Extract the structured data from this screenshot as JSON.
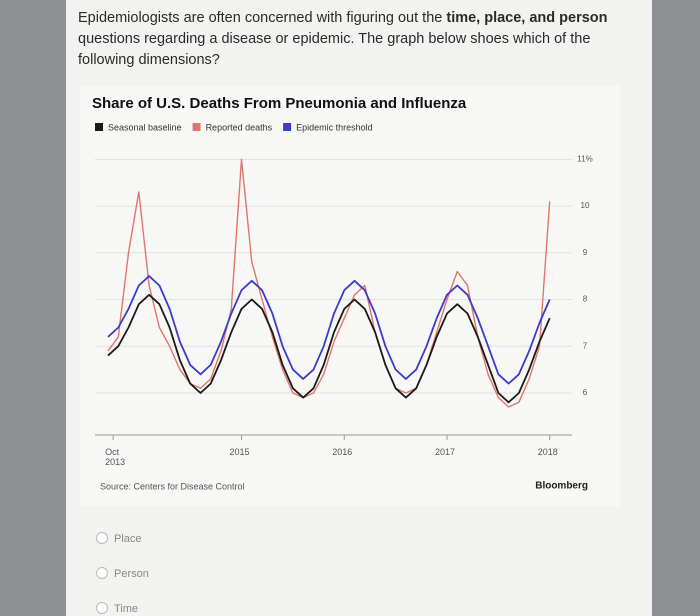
{
  "question": [
    "Epidemiologists are often concerned with figuring out the ",
    "time, place, and person",
    " questions regarding a disease or epidemic. The graph below shoes which of the following dimensions?"
  ],
  "chart_data": {
    "type": "line",
    "title": "Share of U.S. Deaths From Pneumonia and Influenza",
    "x": [
      2013.7,
      2013.8,
      2013.9,
      2014.0,
      2014.1,
      2014.2,
      2014.3,
      2014.4,
      2014.5,
      2014.6,
      2014.7,
      2014.8,
      2014.9,
      2015.0,
      2015.1,
      2015.2,
      2015.3,
      2015.4,
      2015.5,
      2015.6,
      2015.7,
      2015.8,
      2015.9,
      2016.0,
      2016.1,
      2016.2,
      2016.3,
      2016.4,
      2016.5,
      2016.6,
      2016.7,
      2016.8,
      2016.9,
      2017.0,
      2017.1,
      2017.2,
      2017.3,
      2017.4,
      2017.5,
      2017.6,
      2017.7,
      2017.8,
      2017.9,
      2018.0
    ],
    "series": [
      {
        "name": "Seasonal baseline",
        "color": "#1a1a1a",
        "values": [
          6.8,
          7.0,
          7.4,
          7.9,
          8.1,
          7.9,
          7.4,
          6.7,
          6.2,
          6.0,
          6.2,
          6.7,
          7.3,
          7.8,
          8.0,
          7.8,
          7.3,
          6.6,
          6.1,
          5.9,
          6.1,
          6.6,
          7.3,
          7.8,
          8.0,
          7.8,
          7.3,
          6.6,
          6.1,
          5.9,
          6.1,
          6.6,
          7.2,
          7.7,
          7.9,
          7.7,
          7.2,
          6.6,
          6.0,
          5.8,
          6.0,
          6.5,
          7.1,
          7.6
        ]
      },
      {
        "name": "Reported deaths",
        "color": "#e0766b",
        "values": [
          6.9,
          7.2,
          9.0,
          10.3,
          8.3,
          7.4,
          7.0,
          6.5,
          6.2,
          6.1,
          6.3,
          6.9,
          7.8,
          11.0,
          8.8,
          8.0,
          7.2,
          6.5,
          6.0,
          5.9,
          6.0,
          6.4,
          7.1,
          7.6,
          8.1,
          8.3,
          7.3,
          6.6,
          6.1,
          6.0,
          6.1,
          6.6,
          7.3,
          8.0,
          8.6,
          8.3,
          7.2,
          6.4,
          5.9,
          5.7,
          5.8,
          6.3,
          7.0,
          10.1
        ]
      },
      {
        "name": "Epidemic threshold",
        "color": "#3c3cc8",
        "values": [
          7.2,
          7.4,
          7.8,
          8.3,
          8.5,
          8.3,
          7.8,
          7.1,
          6.6,
          6.4,
          6.6,
          7.1,
          7.7,
          8.2,
          8.4,
          8.2,
          7.7,
          7.0,
          6.5,
          6.3,
          6.5,
          7.0,
          7.7,
          8.2,
          8.4,
          8.2,
          7.7,
          7.0,
          6.5,
          6.3,
          6.5,
          7.0,
          7.6,
          8.1,
          8.3,
          8.1,
          7.6,
          7.0,
          6.4,
          6.2,
          6.4,
          6.9,
          7.5,
          8.0
        ]
      }
    ],
    "xlim": [
      2013.7,
      2018.1
    ],
    "xticks": [
      {
        "value": 2013.75,
        "label": "Oct 2013"
      },
      2015,
      2016,
      2017,
      2018
    ],
    "ylim": [
      5.1,
      11.2
    ],
    "yticks": [
      6,
      7,
      8,
      9,
      10,
      {
        "value": 11,
        "label": "11%"
      }
    ],
    "grid": true,
    "source": "Source: Centers for Disease Control",
    "brand": "Bloomberg"
  },
  "options": [
    "Place",
    "Person",
    "Time"
  ]
}
